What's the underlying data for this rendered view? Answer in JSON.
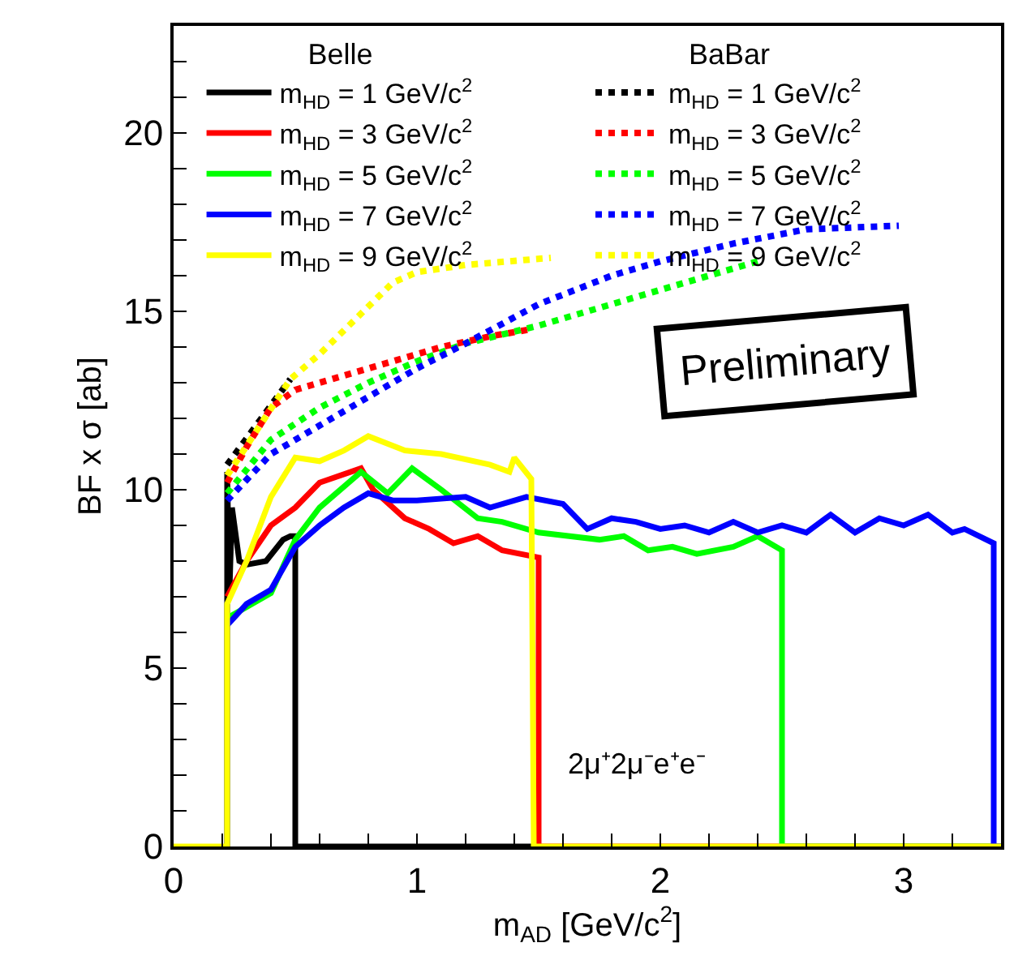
{
  "chart_data": {
    "type": "line",
    "xlabel": "m$_{AD}$ [GeV/c$^{2}$]",
    "ylabel": "BF x σ [ab]",
    "legend_title": [
      "Belle",
      "BaBar"
    ],
    "legend": "top",
    "grid": false,
    "xlim": [
      0,
      3.4
    ],
    "ylim": [
      0,
      23
    ],
    "xticks": [
      0,
      {
        "value": 0.2,
        "label": null
      },
      {
        "value": 0.4,
        "label": null
      },
      {
        "value": 0.6,
        "label": null
      },
      {
        "value": 0.8,
        "label": null
      },
      1,
      {
        "value": 1.2,
        "label": null
      },
      {
        "value": 1.4,
        "label": null
      },
      {
        "value": 1.6,
        "label": null
      },
      {
        "value": 1.8,
        "label": null
      },
      2,
      {
        "value": 2.2,
        "label": null
      },
      {
        "value": 2.4,
        "label": null
      },
      {
        "value": 2.6,
        "label": null
      },
      {
        "value": 2.8,
        "label": null
      },
      3,
      {
        "value": 3.2,
        "label": null
      }
    ],
    "yticks": [
      0,
      {
        "value": 1,
        "label": null
      },
      {
        "value": 2,
        "label": null
      },
      {
        "value": 3,
        "label": null
      },
      {
        "value": 4,
        "label": null
      },
      5,
      {
        "value": 6,
        "label": null
      },
      {
        "value": 7,
        "label": null
      },
      {
        "value": 8,
        "label": null
      },
      {
        "value": 9,
        "label": null
      },
      10,
      {
        "value": 11,
        "label": null
      },
      {
        "value": 12,
        "label": null
      },
      {
        "value": 13,
        "label": null
      },
      {
        "value": 14,
        "label": null
      },
      15,
      {
        "value": 16,
        "label": null
      },
      {
        "value": 17,
        "label": null
      },
      {
        "value": 18,
        "label": null
      },
      {
        "value": 19,
        "label": null
      },
      20,
      {
        "value": 21,
        "label": null
      },
      {
        "value": 22,
        "label": null
      }
    ],
    "annotations": [
      "Preliminary",
      "2μ⁺2μ⁻e⁺e⁻"
    ],
    "series": [
      {
        "name": "m$_{HD}$ = 1 GeV/c$^{2}$",
        "color": "#000000",
        "line_style": "solid",
        "x": [
          0.22,
          0.22,
          0.23,
          0.24,
          0.27,
          0.3,
          0.38,
          0.45,
          0.48,
          0.5,
          0.5,
          1.48
        ],
        "values": [
          0,
          10.5,
          7.2,
          9.5,
          8.0,
          7.9,
          8.0,
          8.6,
          8.7,
          8.7,
          0,
          0
        ]
      },
      {
        "name": "m$_{HD}$ = 3 GeV/c$^{2}$",
        "color": "#ff0000",
        "line_style": "solid",
        "x": [
          0.22,
          0.3,
          0.4,
          0.5,
          0.6,
          0.77,
          0.82,
          0.95,
          1.05,
          1.15,
          1.25,
          1.35,
          1.5,
          1.5,
          3.4
        ],
        "values": [
          7.0,
          8.0,
          9.0,
          9.5,
          10.2,
          10.6,
          10.0,
          9.2,
          8.9,
          8.5,
          8.7,
          8.3,
          8.1,
          0,
          0
        ]
      },
      {
        "name": "m$_{HD}$ = 5 GeV/c$^{2}$",
        "color": "#00ff00",
        "line_style": "solid",
        "x": [
          0.22,
          0.4,
          0.5,
          0.6,
          0.77,
          0.88,
          0.98,
          1.1,
          1.25,
          1.35,
          1.5,
          1.75,
          1.85,
          1.95,
          2.05,
          2.15,
          2.3,
          2.4,
          2.5,
          2.5,
          3.4
        ],
        "values": [
          6.4,
          7.1,
          8.6,
          9.5,
          10.5,
          9.9,
          10.6,
          10.0,
          9.2,
          9.1,
          8.8,
          8.6,
          8.7,
          8.3,
          8.4,
          8.2,
          8.4,
          8.7,
          8.3,
          0,
          0
        ]
      },
      {
        "name": "m$_{HD}$ = 7 GeV/c$^{2}$",
        "color": "#0000ff",
        "line_style": "solid",
        "x": [
          0.22,
          0.3,
          0.4,
          0.5,
          0.6,
          0.7,
          0.8,
          0.9,
          1.0,
          1.2,
          1.3,
          1.45,
          1.6,
          1.7,
          1.8,
          1.9,
          2.0,
          2.1,
          2.2,
          2.3,
          2.4,
          2.5,
          2.6,
          2.7,
          2.8,
          2.9,
          3.0,
          3.1,
          3.2,
          3.25,
          3.37,
          3.37,
          3.4
        ],
        "values": [
          6.2,
          6.8,
          7.2,
          8.4,
          9.0,
          9.5,
          9.9,
          9.7,
          9.7,
          9.8,
          9.5,
          9.8,
          9.6,
          8.9,
          9.2,
          9.1,
          8.9,
          9.0,
          8.8,
          9.1,
          8.8,
          9.0,
          8.8,
          9.3,
          8.8,
          9.2,
          9.0,
          9.3,
          8.8,
          8.9,
          8.5,
          0,
          0
        ]
      },
      {
        "name": "m$_{HD}$ = 9 GeV/c$^{2}$",
        "color": "#ffff00",
        "line_style": "solid",
        "x": [
          0,
          0.22,
          0.22,
          0.3,
          0.4,
          0.5,
          0.6,
          0.7,
          0.8,
          0.95,
          1.1,
          1.3,
          1.38,
          1.4,
          1.47,
          1.48,
          3.4
        ],
        "values": [
          0,
          0,
          6.8,
          8.0,
          9.8,
          10.9,
          10.8,
          11.1,
          11.5,
          11.1,
          11.0,
          10.7,
          10.5,
          10.9,
          10.3,
          0,
          0
        ]
      },
      {
        "name": "m$_{HD}$ = 1 GeV/c$^{2}$",
        "color": "#000000",
        "line_style": "dotted",
        "x": [
          0.22,
          0.48
        ],
        "values": [
          10.7,
          13.1
        ]
      },
      {
        "name": "m$_{HD}$ = 3 GeV/c$^{2}$",
        "color": "#ff0000",
        "line_style": "dotted",
        "x": [
          0.22,
          0.3,
          0.4,
          0.5,
          0.7,
          0.9,
          1.1,
          1.3,
          1.47
        ],
        "values": [
          10.2,
          11.2,
          12.3,
          12.8,
          13.2,
          13.6,
          14.0,
          14.3,
          14.5
        ]
      },
      {
        "name": "m$_{HD}$ = 5 GeV/c$^{2}$",
        "color": "#00ff00",
        "line_style": "dotted",
        "x": [
          0.22,
          0.4,
          0.6,
          0.8,
          1.0,
          1.2,
          1.5,
          1.8,
          2.0,
          2.4
        ],
        "values": [
          9.9,
          11.4,
          12.3,
          13.0,
          13.6,
          14.1,
          14.6,
          15.2,
          15.6,
          16.4
        ]
      },
      {
        "name": "m$_{HD}$ = 7 GeV/c$^{2}$",
        "color": "#0000ff",
        "line_style": "dotted",
        "x": [
          0.22,
          0.4,
          0.6,
          0.8,
          1.0,
          1.2,
          1.5,
          1.8,
          2.0,
          2.3,
          2.6,
          2.98
        ],
        "values": [
          9.7,
          11.0,
          11.8,
          12.6,
          13.4,
          14.1,
          15.2,
          16.0,
          16.4,
          16.9,
          17.3,
          17.4
        ]
      },
      {
        "name": "m$_{HD}$ = 9 GeV/c$^{2}$",
        "color": "#ffff00",
        "line_style": "dotted",
        "x": [
          0.22,
          0.48,
          0.6,
          0.75,
          0.9,
          1.0,
          1.2,
          1.55
        ],
        "values": [
          10.4,
          13.1,
          13.8,
          14.8,
          15.8,
          16.1,
          16.3,
          16.5
        ]
      }
    ]
  }
}
